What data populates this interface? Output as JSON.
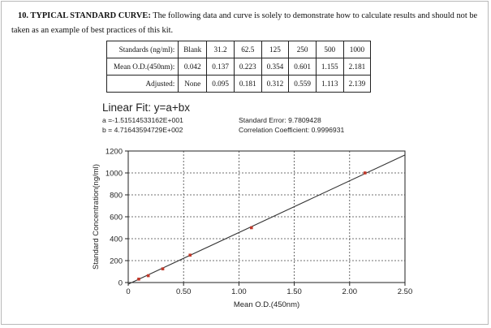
{
  "section": {
    "lead": "10. TYPICAL STANDARD CURVE:",
    "text": "The following data and curve is solely to demonstrate how to calculate results and should not be taken as an example of best practices of this kit."
  },
  "table": {
    "rows": [
      [
        "Standards (ng/ml):",
        "Blank",
        "31.2",
        "62.5",
        "125",
        "250",
        "500",
        "1000"
      ],
      [
        "Mean O.D.(450nm):",
        "0.042",
        "0.137",
        "0.223",
        "0.354",
        "0.601",
        "1.155",
        "2.181"
      ],
      [
        "Adjusted:",
        "None",
        "0.095",
        "0.181",
        "0.312",
        "0.559",
        "1.113",
        "2.139"
      ]
    ]
  },
  "fit": {
    "title": "Linear Fit: y=a+bx",
    "a": "a =-1.51514533162E+001",
    "b": "b = 4.71643594729E+002",
    "std_error": "Standard Error: 9.7809428",
    "corr": "Correlation Coefficient: 0.9996931"
  },
  "chart_data": {
    "type": "scatter",
    "xlabel": "Mean O.D.(450nm)",
    "ylabel": "Standard Concentration(ng/ml)",
    "xlim": [
      0,
      2.5
    ],
    "ylim": [
      0,
      1200
    ],
    "xticks": [
      "0",
      "0.50",
      "1.00",
      "1.50",
      "2.00",
      "2.50"
    ],
    "yticks": [
      "0",
      "200",
      "400",
      "600",
      "800",
      "1000",
      "1200"
    ],
    "grid": true,
    "points": [
      {
        "x": 0.095,
        "y": 31.2
      },
      {
        "x": 0.181,
        "y": 62.5
      },
      {
        "x": 0.312,
        "y": 125
      },
      {
        "x": 0.559,
        "y": 250
      },
      {
        "x": 1.113,
        "y": 500
      },
      {
        "x": 2.139,
        "y": 1000
      }
    ],
    "fit_line": {
      "a": -15.1514533162,
      "b": 471.643594729,
      "x_range": [
        0,
        2.5
      ]
    },
    "colors": {
      "points": "#c0392b",
      "line": "#333333",
      "grid": "#444444"
    }
  }
}
